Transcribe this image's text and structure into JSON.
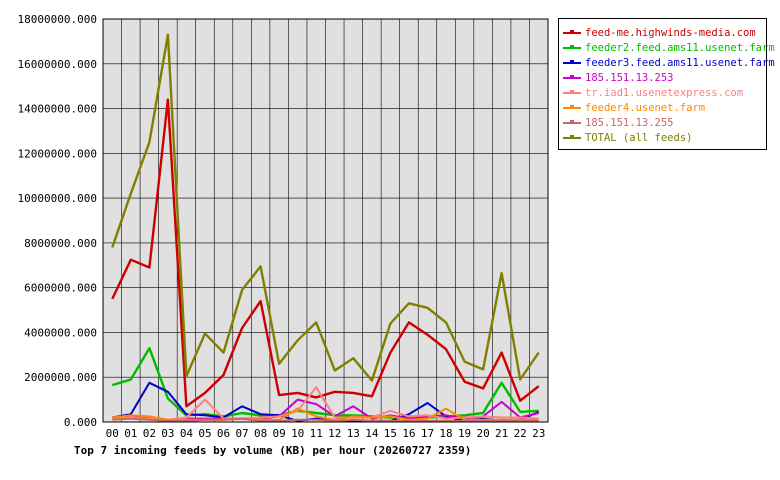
{
  "caption": "Top 7 incoming feeds by volume (KB) per hour (20260727 2359)",
  "chart_data": {
    "type": "line",
    "title": "Top 7 incoming feeds by volume (KB) per hour (20260727 2359)",
    "xlabel": "",
    "ylabel": "",
    "categories": [
      "00",
      "01",
      "02",
      "03",
      "04",
      "05",
      "06",
      "07",
      "08",
      "09",
      "10",
      "11",
      "12",
      "13",
      "14",
      "15",
      "16",
      "17",
      "18",
      "19",
      "20",
      "21",
      "22",
      "23"
    ],
    "ylim": [
      0,
      18000000
    ],
    "yticks": [
      "0.000",
      "2000000.000",
      "4000000.000",
      "6000000.000",
      "8000000.000",
      "10000000.000",
      "12000000.000",
      "14000000.000",
      "16000000.000",
      "18000000.000"
    ],
    "grid": true,
    "legend_position": "right",
    "background": "#e0e0e0",
    "series": [
      {
        "name": "feed-me.highwinds-media.com",
        "color": "#cc0000",
        "values": [
          5500000,
          7250000,
          6900000,
          14400000,
          700000,
          1300000,
          2100000,
          4200000,
          5400000,
          1200000,
          1300000,
          1100000,
          1350000,
          1300000,
          1150000,
          3100000,
          4450000,
          3900000,
          3250000,
          1800000,
          1500000,
          3100000,
          950000,
          1600000
        ]
      },
      {
        "name": "feeder2.feed.ams11.usenet.farm",
        "color": "#00bb00",
        "values": [
          1650000,
          1900000,
          3300000,
          1050000,
          300000,
          350000,
          250000,
          400000,
          300000,
          300000,
          500000,
          400000,
          300000,
          300000,
          250000,
          200000,
          250000,
          200000,
          250000,
          300000,
          400000,
          1750000,
          450000,
          500000
        ]
      },
      {
        "name": "feeder3.feed.ams11.usenet.farm",
        "color": "#0000cc",
        "values": [
          200000,
          350000,
          1750000,
          1350000,
          350000,
          300000,
          200000,
          700000,
          350000,
          300000,
          50000,
          150000,
          50000,
          50000,
          50000,
          50000,
          350000,
          850000,
          250000,
          50000,
          150000,
          50000,
          100000,
          450000
        ]
      },
      {
        "name": "185.151.13.253",
        "color": "#cc00cc",
        "values": [
          200000,
          200000,
          200000,
          100000,
          150000,
          150000,
          150000,
          150000,
          150000,
          250000,
          1000000,
          800000,
          250000,
          700000,
          150000,
          300000,
          150000,
          250000,
          300000,
          150000,
          250000,
          900000,
          200000,
          400000
        ]
      },
      {
        "name": "tr.iad1.usenetexpress.com",
        "color": "#ff8080",
        "values": [
          150000,
          200000,
          150000,
          100000,
          200000,
          1000000,
          150000,
          150000,
          200000,
          250000,
          500000,
          1550000,
          200000,
          200000,
          200000,
          500000,
          250000,
          300000,
          150000,
          200000,
          250000,
          200000,
          200000,
          150000
        ]
      },
      {
        "name": "feeder4.usenet.farm",
        "color": "#ff8800",
        "values": [
          200000,
          300000,
          250000,
          100000,
          100000,
          100000,
          100000,
          150000,
          100000,
          100000,
          600000,
          250000,
          100000,
          250000,
          200000,
          250000,
          100000,
          150000,
          600000,
          100000,
          100000,
          100000,
          100000,
          100000
        ]
      },
      {
        "name": "185.151.13.255",
        "color": "#cc6666",
        "values": [
          100000,
          150000,
          100000,
          50000,
          50000,
          100000,
          100000,
          150000,
          50000,
          50000,
          100000,
          100000,
          50000,
          100000,
          50000,
          50000,
          50000,
          50000,
          50000,
          50000,
          50000,
          50000,
          50000,
          50000
        ]
      },
      {
        "name": "TOTAL (all feeds)",
        "color": "#808000",
        "values": [
          7800000,
          10200000,
          12500000,
          17300000,
          2050000,
          3950000,
          3100000,
          5900000,
          6950000,
          2600000,
          3650000,
          4450000,
          2300000,
          2850000,
          1850000,
          4400000,
          5300000,
          5100000,
          4450000,
          2700000,
          2350000,
          6650000,
          1900000,
          3100000
        ]
      }
    ]
  }
}
